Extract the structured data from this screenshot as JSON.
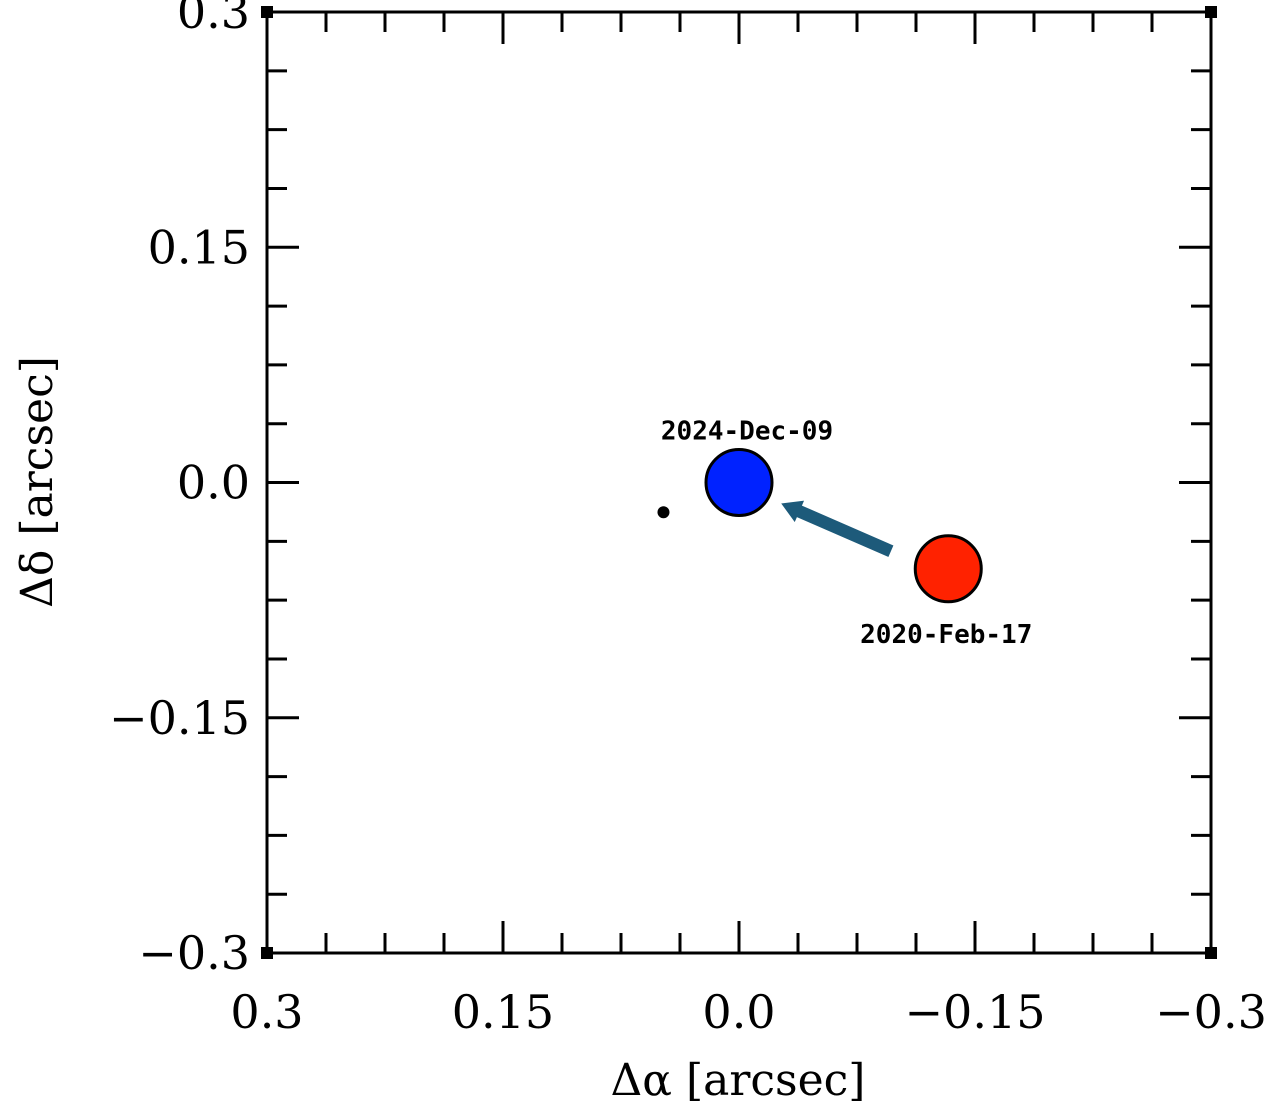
{
  "chart_data": {
    "type": "scatter",
    "title": "",
    "xlabel": "Δα [arcsec]",
    "ylabel": "Δδ [arcsec]",
    "xlim": [
      0.3,
      -0.3
    ],
    "ylim": [
      -0.3,
      0.3
    ],
    "x_ticks": [
      0.3,
      0.15,
      0.0,
      -0.15,
      -0.3
    ],
    "x_tick_labels": [
      "0.3",
      "0.15",
      "0.0",
      "−0.15",
      "−0.3"
    ],
    "y_ticks": [
      0.3,
      0.15,
      0.0,
      -0.15,
      -0.3
    ],
    "y_tick_labels": [
      "0.3",
      "0.15",
      "0.0",
      "−0.15",
      "−0.3"
    ],
    "minor_tick_step": 0.0375,
    "grid": false,
    "points": [
      {
        "label": "2024-Dec-09",
        "x": 0.0,
        "y": 0.0,
        "color": "#0022ff",
        "size": "large"
      },
      {
        "label": "2020-Feb-17",
        "x": -0.133,
        "y": -0.055,
        "color": "#ff2200",
        "size": "large"
      },
      {
        "label": "",
        "x": 0.048,
        "y": -0.019,
        "color": "#000000",
        "size": "small"
      }
    ],
    "arrow": {
      "from": [
        -0.097,
        -0.044
      ],
      "to": [
        -0.026,
        -0.013
      ],
      "color": "#1d5a7a"
    }
  }
}
